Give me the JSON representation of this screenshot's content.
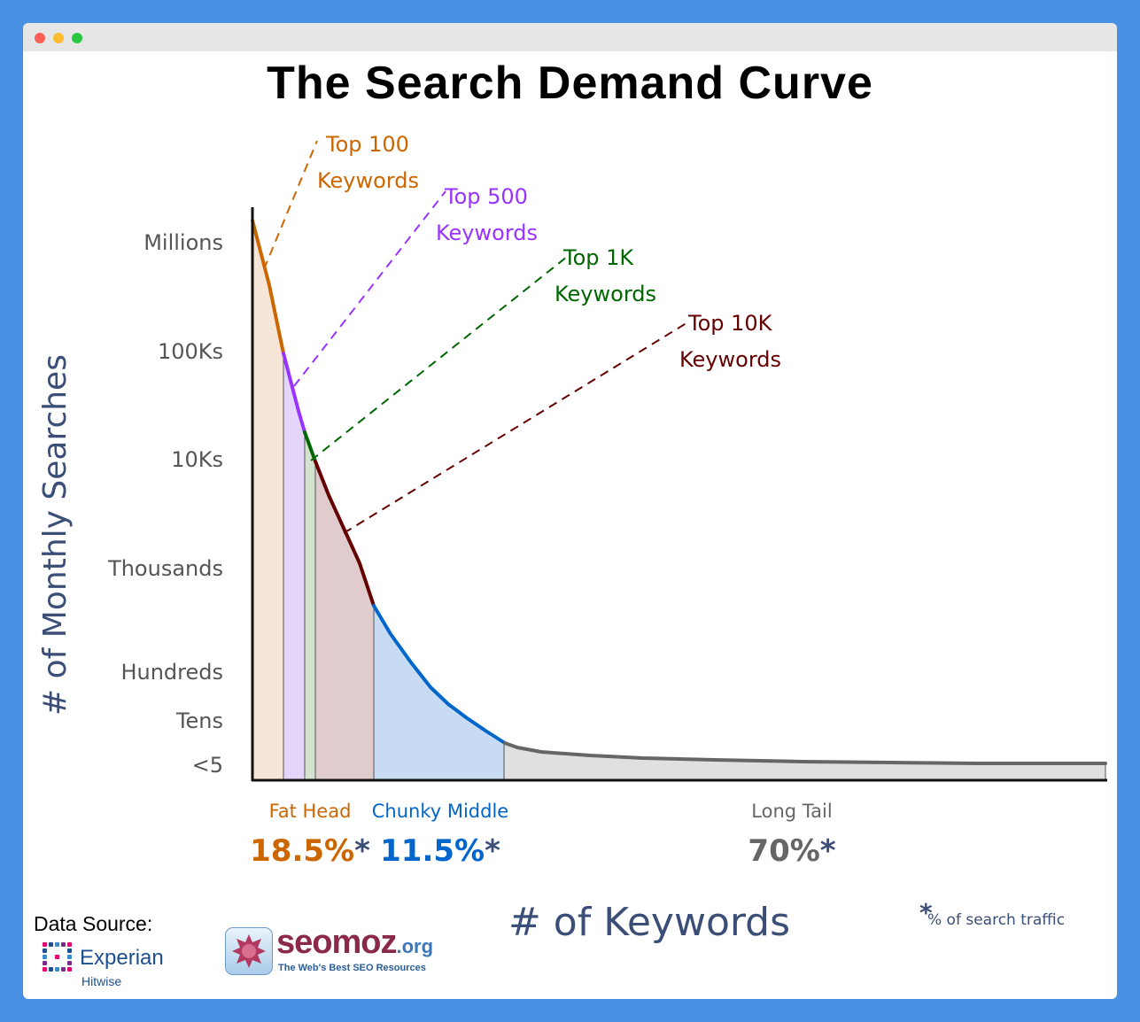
{
  "window": {
    "controls": [
      "close",
      "minimize",
      "maximize"
    ]
  },
  "chart_data": {
    "type": "area",
    "title": "The Search Demand Curve",
    "xlabel": "# of Keywords",
    "ylabel": "# of Monthly Searches",
    "y_tick_labels": [
      "Millions",
      "100Ks",
      "10Ks",
      "Thousands",
      "Hundreds",
      "Tens",
      "<5"
    ],
    "callouts": [
      {
        "line1": "Top 100",
        "line2": "Keywords",
        "color": "#cc6600"
      },
      {
        "line1": "Top 500",
        "line2": "Keywords",
        "color": "#9933ff"
      },
      {
        "line1": "Top 1K",
        "line2": "Keywords",
        "color": "#006600"
      },
      {
        "line1": "Top 10K",
        "line2": "Keywords",
        "color": "#660000"
      }
    ],
    "segments": [
      {
        "label": "Fat Head",
        "percent": "18.5%",
        "asterisk": "*",
        "color": "#cc6600"
      },
      {
        "label": "Chunky Middle",
        "percent": "11.5%",
        "asterisk": "*",
        "color": "#0066cc"
      },
      {
        "label": "Long Tail",
        "percent": "70%",
        "asterisk": "*",
        "color": "#666666"
      }
    ],
    "footnote_mark": "*",
    "footnote": "% of search traffic",
    "colors": {
      "top100": "#cc6600",
      "top500": "#9933ff",
      "top1k": "#006600",
      "top10k": "#660000",
      "chunky": "#0066cc",
      "tail": "#666666",
      "axis_label": "#3b4e78",
      "tick_label": "#555555"
    }
  },
  "footer": {
    "data_source_label": "Data Source:",
    "experian_name": "Experian",
    "experian_sub": "Hitwise",
    "seomoz_name": "seomoz",
    "seomoz_tld": ".org",
    "seomoz_tagline": "The Web's Best SEO Resources"
  }
}
